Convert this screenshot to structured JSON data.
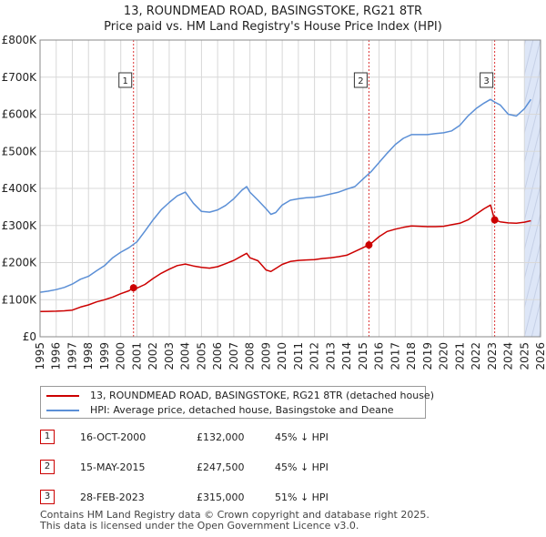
{
  "title_line1": "13, ROUNDMEAD ROAD, BASINGSTOKE, RG21 8TR",
  "title_line2": "Price paid vs. HM Land Registry's House Price Index (HPI)",
  "chart_data": {
    "type": "line",
    "xlim": [
      1995,
      2026
    ],
    "ylim": [
      0,
      800000
    ],
    "x_ticks": [
      "1995",
      "1996",
      "1997",
      "1998",
      "1999",
      "2000",
      "2001",
      "2002",
      "2003",
      "2004",
      "2005",
      "2006",
      "2007",
      "2008",
      "2009",
      "2010",
      "2011",
      "2012",
      "2013",
      "2014",
      "2015",
      "2016",
      "2017",
      "2018",
      "2019",
      "2020",
      "2021",
      "2022",
      "2023",
      "2024",
      "2025",
      "2026"
    ],
    "y_ticks": [
      {
        "value": 0,
        "label": "£0"
      },
      {
        "value": 100000,
        "label": "£100K"
      },
      {
        "value": 200000,
        "label": "£200K"
      },
      {
        "value": 300000,
        "label": "£300K"
      },
      {
        "value": 400000,
        "label": "£400K"
      },
      {
        "value": 500000,
        "label": "£500K"
      },
      {
        "value": 600000,
        "label": "£600K"
      },
      {
        "value": 700000,
        "label": "£700K"
      },
      {
        "value": 800000,
        "label": "£800K"
      }
    ],
    "grid": true,
    "colors": {
      "property": "#cc0000",
      "hpi": "#5b8fd6",
      "shade": "#dde6f7",
      "marker_line": "#dd3333"
    },
    "shaded_regions": [
      [
        2000.79,
        2000.79
      ],
      [
        2025.0,
        2026.0
      ]
    ],
    "series": [
      {
        "name": "13, ROUNDMEAD ROAD, BASINGSTOKE, RG21 8TR (detached house)",
        "x": [
          1995.0,
          1995.5,
          1996.0,
          1996.5,
          1997.0,
          1997.5,
          1998.0,
          1998.5,
          1999.0,
          1999.5,
          2000.0,
          2000.5,
          2000.79,
          2001.0,
          2001.5,
          2002.0,
          2002.5,
          2003.0,
          2003.5,
          2004.0,
          2004.5,
          2005.0,
          2005.5,
          2006.0,
          2006.5,
          2007.0,
          2007.5,
          2007.8,
          2008.0,
          2008.5,
          2009.0,
          2009.3,
          2009.6,
          2010.0,
          2010.5,
          2011.0,
          2011.5,
          2012.0,
          2012.5,
          2013.0,
          2013.5,
          2014.0,
          2014.5,
          2015.0,
          2015.37,
          2015.6,
          2016.0,
          2016.5,
          2017.0,
          2017.5,
          2018.0,
          2018.5,
          2019.0,
          2019.5,
          2020.0,
          2020.5,
          2021.0,
          2021.5,
          2022.0,
          2022.5,
          2022.9,
          2023.16,
          2023.5,
          2024.0,
          2024.5,
          2025.0,
          2025.4
        ],
        "values": [
          68000,
          68500,
          69000,
          70000,
          72000,
          80000,
          86000,
          94000,
          100000,
          107000,
          116000,
          124000,
          132000,
          131000,
          141000,
          157000,
          171000,
          182000,
          192000,
          196000,
          191000,
          187000,
          185000,
          189000,
          197000,
          206000,
          218000,
          225000,
          213000,
          205000,
          180000,
          176000,
          184000,
          195000,
          203000,
          206000,
          207000,
          208000,
          211000,
          213000,
          216000,
          220000,
          230000,
          240000,
          247500,
          255000,
          270000,
          284000,
          290000,
          295000,
          299000,
          298000,
          297000,
          297000,
          298000,
          302000,
          306000,
          315000,
          330000,
          345000,
          355000,
          315000,
          310000,
          307000,
          306000,
          309000,
          313000
        ]
      },
      {
        "name": "HPI: Average price, detached house, Basingstoke and Deane",
        "x": [
          1995.0,
          1995.5,
          1996.0,
          1996.5,
          1997.0,
          1997.5,
          1998.0,
          1998.5,
          1999.0,
          1999.5,
          2000.0,
          2000.5,
          2001.0,
          2001.5,
          2002.0,
          2002.5,
          2003.0,
          2003.5,
          2004.0,
          2004.5,
          2005.0,
          2005.5,
          2006.0,
          2006.5,
          2007.0,
          2007.5,
          2007.8,
          2008.0,
          2008.5,
          2009.0,
          2009.3,
          2009.6,
          2010.0,
          2010.5,
          2011.0,
          2011.5,
          2012.0,
          2012.5,
          2013.0,
          2013.5,
          2014.0,
          2014.5,
          2015.0,
          2015.5,
          2016.0,
          2016.5,
          2017.0,
          2017.5,
          2018.0,
          2018.5,
          2019.0,
          2019.5,
          2020.0,
          2020.5,
          2021.0,
          2021.5,
          2022.0,
          2022.5,
          2022.9,
          2023.16,
          2023.5,
          2024.0,
          2024.5,
          2025.0,
          2025.4
        ],
        "values": [
          120000,
          123000,
          127000,
          133000,
          142000,
          155000,
          163000,
          178000,
          192000,
          213000,
          228000,
          240000,
          256000,
          285000,
          315000,
          342000,
          362000,
          380000,
          390000,
          360000,
          338000,
          336000,
          342000,
          354000,
          372000,
          395000,
          405000,
          390000,
          368000,
          345000,
          330000,
          335000,
          355000,
          368000,
          372000,
          375000,
          376000,
          380000,
          385000,
          390000,
          398000,
          405000,
          425000,
          445000,
          470000,
          495000,
          518000,
          535000,
          545000,
          545000,
          545000,
          548000,
          550000,
          555000,
          570000,
          595000,
          615000,
          630000,
          640000,
          633000,
          625000,
          600000,
          595000,
          615000,
          640000
        ]
      }
    ],
    "sales": [
      {
        "num": "1",
        "x": 2000.79,
        "price": 132000,
        "date": "16-OCT-2000",
        "price_label": "£132,000",
        "delta": "45% ↓ HPI"
      },
      {
        "num": "2",
        "x": 2015.37,
        "price": 247500,
        "date": "15-MAY-2015",
        "price_label": "£247,500",
        "delta": "45% ↓ HPI"
      },
      {
        "num": "3",
        "x": 2023.16,
        "price": 315000,
        "date": "28-FEB-2023",
        "price_label": "£315,000",
        "delta": "51% ↓ HPI"
      }
    ]
  },
  "legend": {
    "property_label": "13, ROUNDMEAD ROAD, BASINGSTOKE, RG21 8TR (detached house)",
    "hpi_label": "HPI: Average price, detached house, Basingstoke and Deane"
  },
  "footer": {
    "line1": "Contains HM Land Registry data © Crown copyright and database right 2025.",
    "line2": "This data is licensed under the Open Government Licence v3.0."
  }
}
